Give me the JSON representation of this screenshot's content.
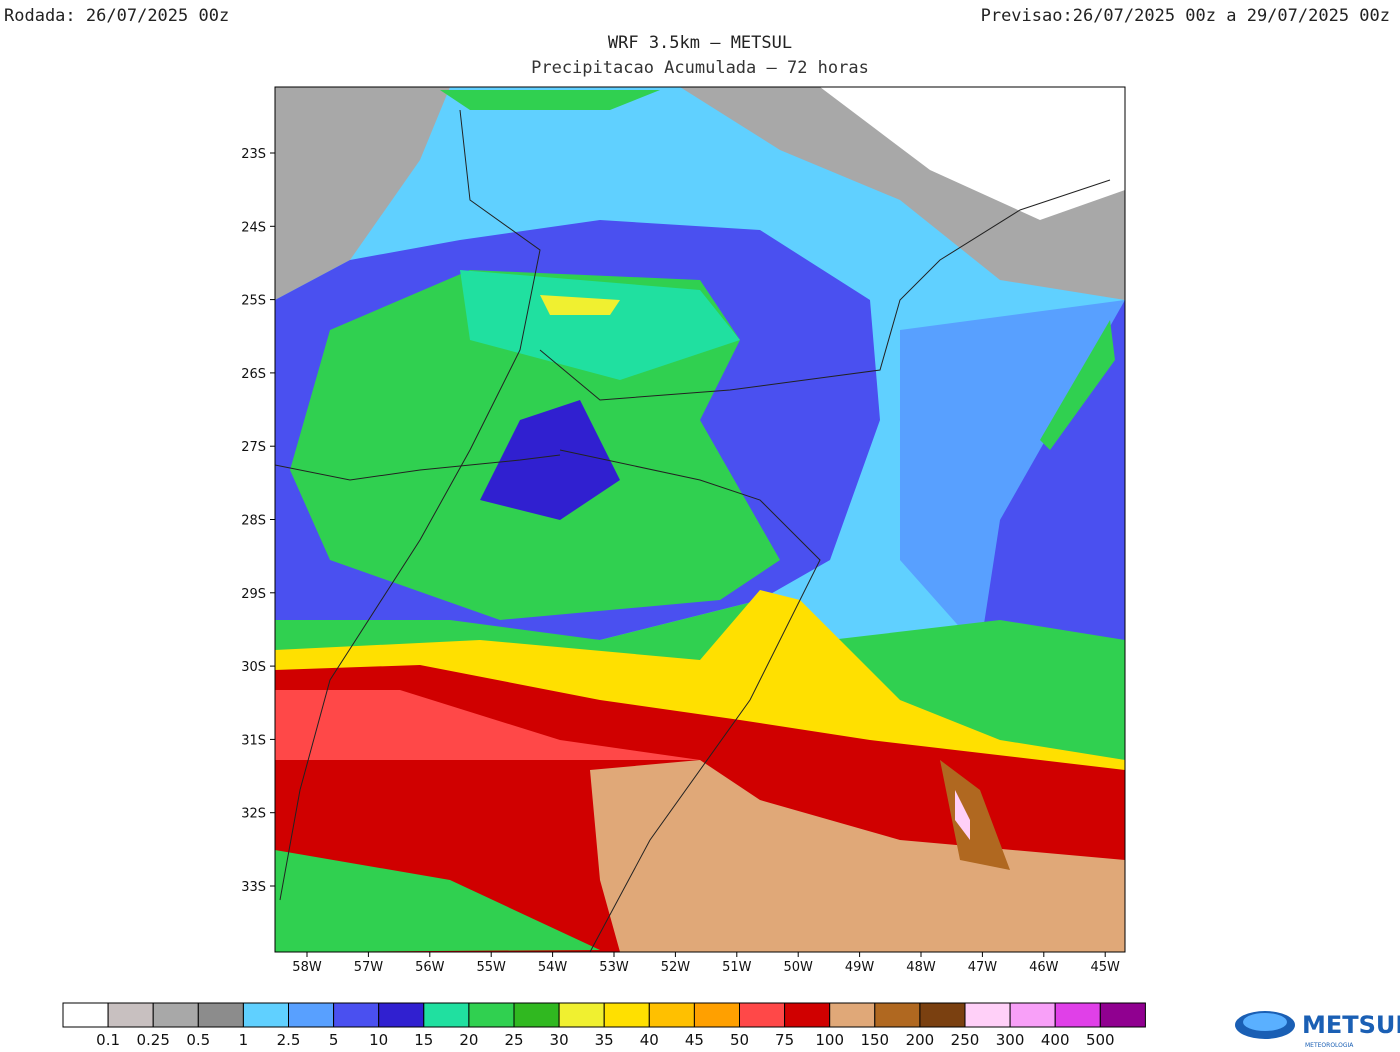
{
  "header": {
    "run_label": "Rodada:",
    "run": "26/07/2025 00z",
    "forecast_label": "Previsao:",
    "forecast": "26/07/2025 00z a 29/07/2025 00z",
    "title": "WRF 3.5km – METSUL",
    "subtitle": "Precipitacao Acumulada – 72 horas"
  },
  "map": {
    "lat_labels": [
      "23S",
      "24S",
      "25S",
      "26S",
      "27S",
      "28S",
      "29S",
      "30S",
      "31S",
      "32S",
      "33S"
    ],
    "lon_labels": [
      "58W",
      "57W",
      "56W",
      "55W",
      "54W",
      "53W",
      "52W",
      "51W",
      "50W",
      "49W",
      "48W",
      "47W",
      "46W",
      "45W"
    ]
  },
  "legend": {
    "colors": [
      "#ffffff",
      "#c8c0c0",
      "#a8a8a8",
      "#8c8c8c",
      "#60d0ff",
      "#58a0ff",
      "#4a50f0",
      "#3020d0",
      "#20e0a0",
      "#30d050",
      "#30b820",
      "#f0f030",
      "#ffe000",
      "#ffc000",
      "#ffa000",
      "#ff4848",
      "#d00000",
      "#e0a878",
      "#b06820",
      "#7a4010",
      "#ffd0f8",
      "#f8a0f8",
      "#e040e8",
      "#900090"
    ],
    "labels": [
      "0.1",
      "0.25",
      "0.5",
      "1",
      "2.5",
      "5",
      "10",
      "15",
      "20",
      "25",
      "30",
      "35",
      "40",
      "45",
      "50",
      "75",
      "100",
      "150",
      "200",
      "250",
      "300",
      "400",
      "500"
    ]
  },
  "logo": {
    "name": "METSUL",
    "tagline": "METEOROLOGIA"
  }
}
